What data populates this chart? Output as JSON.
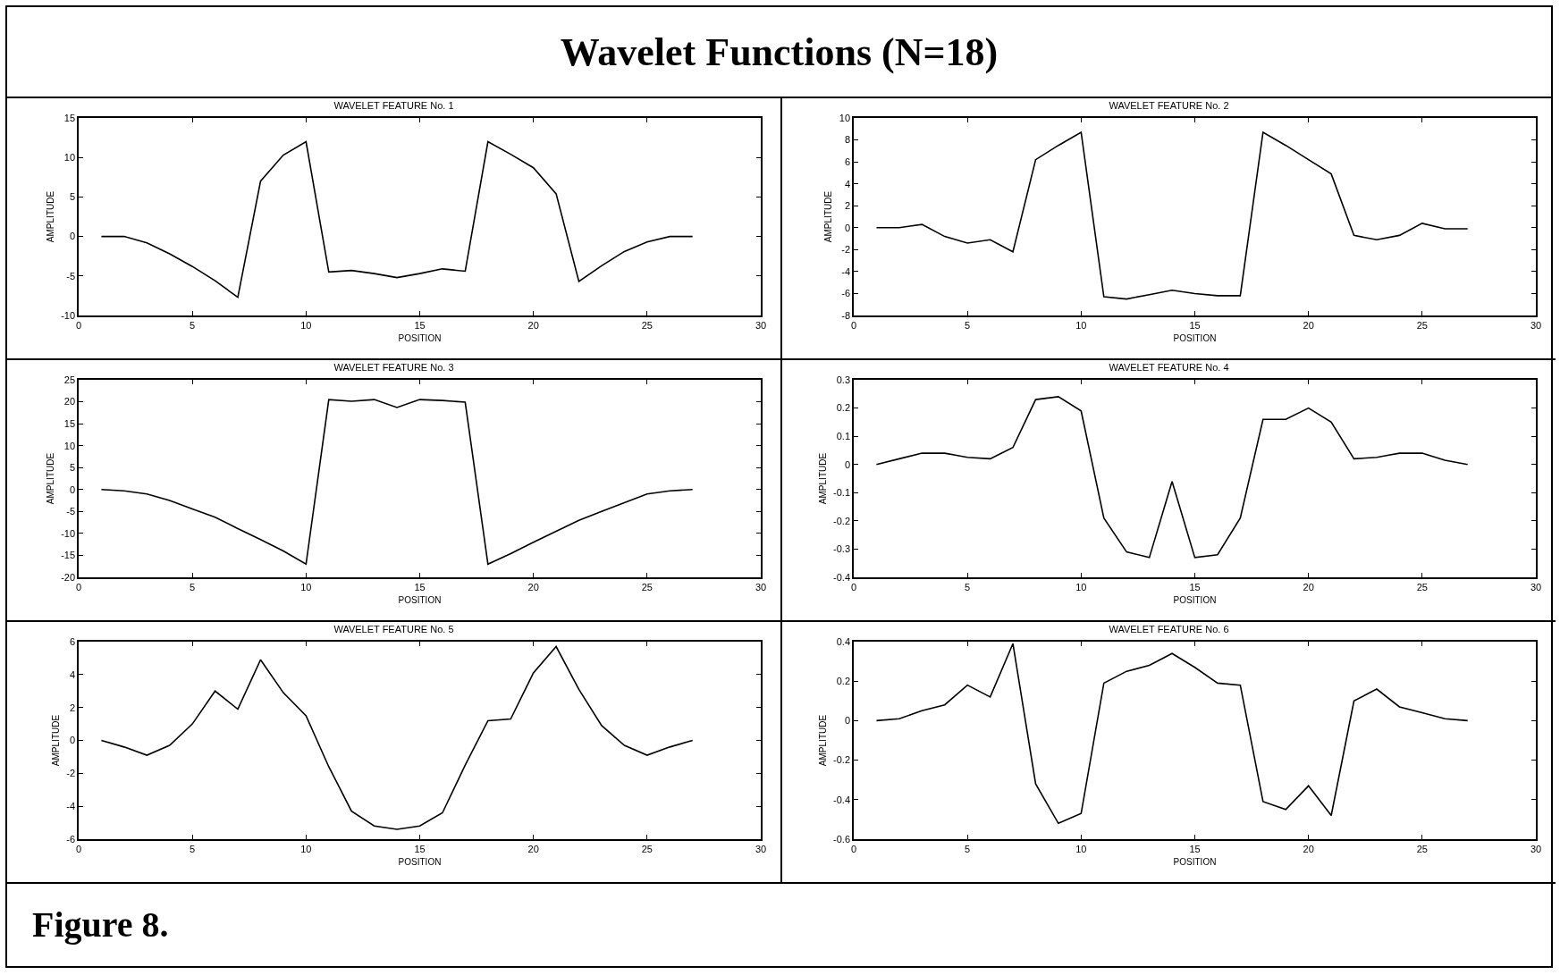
{
  "chart_data": [
    {
      "type": "other",
      "title": "Wavelet Functions (N=18)"
    },
    {
      "type": "line",
      "title": "WAVELET FEATURE No. 1",
      "xlabel": "POSITION",
      "ylabel": "AMPLITUDE",
      "x": [
        1,
        2,
        3,
        4,
        5,
        6,
        7,
        8,
        9,
        10,
        11,
        12,
        13,
        14,
        15,
        16,
        17,
        18,
        19,
        20,
        21,
        22,
        23,
        24,
        25,
        26,
        27
      ],
      "xlim": [
        0,
        30
      ],
      "xticks": [
        0,
        5,
        10,
        15,
        20,
        25,
        30
      ],
      "ylim": [
        -10,
        15
      ],
      "yticks": [
        -10,
        -5,
        0,
        5,
        10,
        15
      ],
      "series": [
        {
          "color": "#000000",
          "values": [
            0,
            0,
            -0.8,
            -2.2,
            -3.8,
            -5.6,
            -7.7,
            7,
            10.3,
            12,
            -4.5,
            -4.3,
            -4.7,
            -5.2,
            -4.7,
            -4.1,
            -4.4,
            12,
            10.4,
            8.7,
            5.4,
            -5.7,
            -3.7,
            -1.9,
            -0.7,
            0,
            0
          ]
        }
      ]
    },
    {
      "type": "line",
      "title": "WAVELET FEATURE No. 2",
      "xlabel": "POSITION",
      "ylabel": "AMPLITUDE",
      "x": [
        1,
        2,
        3,
        4,
        5,
        6,
        7,
        8,
        9,
        10,
        11,
        12,
        13,
        14,
        15,
        16,
        17,
        18,
        19,
        20,
        21,
        22,
        23,
        24,
        25,
        26,
        27
      ],
      "xlim": [
        0,
        30
      ],
      "xticks": [
        0,
        5,
        10,
        15,
        20,
        25,
        30
      ],
      "ylim": [
        -8,
        10
      ],
      "yticks": [
        -8,
        -6,
        -4,
        -2,
        0,
        2,
        4,
        6,
        8,
        10
      ],
      "series": [
        {
          "color": "#000000",
          "values": [
            0,
            0,
            0.3,
            -0.8,
            -1.4,
            -1.1,
            -2.2,
            6.2,
            7.5,
            8.7,
            -6.3,
            -6.5,
            -6.1,
            -5.7,
            -6,
            -6.2,
            -6.2,
            8.7,
            7.5,
            6.2,
            4.9,
            -0.7,
            -1.1,
            -0.7,
            0.4,
            -0.1,
            -0.1
          ]
        }
      ]
    },
    {
      "type": "line",
      "title": "WAVELET FEATURE No. 3",
      "xlabel": "POSITION",
      "ylabel": "AMPLITUDE",
      "x": [
        1,
        2,
        3,
        4,
        5,
        6,
        7,
        8,
        9,
        10,
        11,
        12,
        13,
        14,
        15,
        16,
        17,
        18,
        19,
        20,
        21,
        22,
        23,
        24,
        25,
        26,
        27
      ],
      "xlim": [
        0,
        30
      ],
      "xticks": [
        0,
        5,
        10,
        15,
        20,
        25,
        30
      ],
      "ylim": [
        -20,
        25
      ],
      "yticks": [
        -20,
        -15,
        -10,
        -5,
        0,
        5,
        10,
        15,
        20,
        25
      ],
      "series": [
        {
          "color": "#000000",
          "values": [
            0,
            -0.3,
            -1,
            -2.5,
            -4.4,
            -6.3,
            -8.9,
            -11.4,
            -14,
            -17,
            20.5,
            20.1,
            20.5,
            18.7,
            20.5,
            20.3,
            19.9,
            -17,
            -14.6,
            -12,
            -9.5,
            -7,
            -5,
            -3,
            -1,
            -0.3,
            0
          ]
        }
      ]
    },
    {
      "type": "line",
      "title": "WAVELET FEATURE No. 4",
      "xlabel": "POSITION",
      "ylabel": "AMPLITUDE",
      "x": [
        1,
        2,
        3,
        4,
        5,
        6,
        7,
        8,
        9,
        10,
        11,
        12,
        13,
        14,
        15,
        16,
        17,
        18,
        19,
        20,
        21,
        22,
        23,
        24,
        25,
        26,
        27
      ],
      "xlim": [
        0,
        30
      ],
      "xticks": [
        0,
        5,
        10,
        15,
        20,
        25,
        30
      ],
      "ylim": [
        -0.4,
        0.3
      ],
      "yticks": [
        -0.4,
        -0.3,
        -0.2,
        -0.1,
        0,
        0.1,
        0.2,
        0.3
      ],
      "series": [
        {
          "color": "#000000",
          "values": [
            0,
            0.02,
            0.04,
            0.04,
            0.025,
            0.02,
            0.06,
            0.23,
            0.24,
            0.19,
            -0.19,
            -0.31,
            -0.33,
            -0.06,
            -0.33,
            -0.32,
            -0.19,
            0.16,
            0.16,
            0.2,
            0.15,
            0.02,
            0.025,
            0.04,
            0.04,
            0.015,
            0
          ]
        }
      ]
    },
    {
      "type": "line",
      "title": "WAVELET FEATURE No. 5",
      "xlabel": "POSITION",
      "ylabel": "AMPLITUDE",
      "x": [
        1,
        2,
        3,
        4,
        5,
        6,
        7,
        8,
        9,
        10,
        11,
        12,
        13,
        14,
        15,
        16,
        17,
        18,
        19,
        20,
        21,
        22,
        23,
        24,
        25,
        26,
        27
      ],
      "xlim": [
        0,
        30
      ],
      "xticks": [
        0,
        5,
        10,
        15,
        20,
        25,
        30
      ],
      "ylim": [
        -6,
        6
      ],
      "yticks": [
        -6,
        -4,
        -2,
        0,
        2,
        4,
        6
      ],
      "series": [
        {
          "color": "#000000",
          "values": [
            0,
            -0.4,
            -0.9,
            -0.3,
            1,
            3,
            1.9,
            4.9,
            2.9,
            1.5,
            -1.6,
            -4.3,
            -5.2,
            -5.4,
            -5.2,
            -4.4,
            -1.5,
            1.2,
            1.3,
            4.1,
            5.7,
            3.1,
            0.9,
            -0.3,
            -0.9,
            -0.4,
            0
          ]
        }
      ]
    },
    {
      "type": "line",
      "title": "WAVELET FEATURE No. 6",
      "xlabel": "POSITION",
      "ylabel": "AMPLITUDE",
      "x": [
        1,
        2,
        3,
        4,
        5,
        6,
        7,
        8,
        9,
        10,
        11,
        12,
        13,
        14,
        15,
        16,
        17,
        18,
        19,
        20,
        21,
        22,
        23,
        24,
        25,
        26,
        27
      ],
      "xlim": [
        0,
        30
      ],
      "xticks": [
        0,
        5,
        10,
        15,
        20,
        25,
        30
      ],
      "ylim": [
        -0.6,
        0.4
      ],
      "yticks": [
        -0.6,
        -0.4,
        -0.2,
        0,
        0.2,
        0.4
      ],
      "series": [
        {
          "color": "#000000",
          "values": [
            0,
            0.01,
            0.05,
            0.08,
            0.18,
            0.12,
            0.39,
            -0.32,
            -0.52,
            -0.47,
            0.19,
            0.25,
            0.28,
            0.34,
            0.27,
            0.19,
            0.18,
            -0.41,
            -0.45,
            -0.33,
            -0.48,
            0.1,
            0.16,
            0.07,
            0.04,
            0.01,
            0
          ]
        }
      ]
    },
    {
      "type": "other",
      "annotations": [
        "Figure 8."
      ]
    }
  ]
}
